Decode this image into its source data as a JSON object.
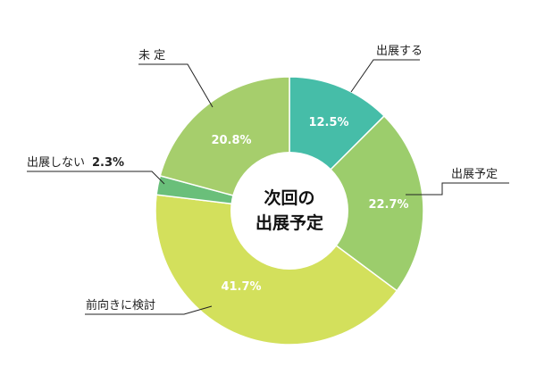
{
  "chart_data": {
    "type": "pie",
    "donut": true,
    "center_label": [
      "次回の",
      "出展予定"
    ],
    "slices": [
      {
        "label": "出展する",
        "value": 12.5,
        "value_text": "12.5%",
        "color": "#46bda8"
      },
      {
        "label": "出展予定",
        "value": 22.7,
        "value_text": "22.7%",
        "color": "#9ccd6c"
      },
      {
        "label": "前向きに検討",
        "value": 41.7,
        "value_text": "41.7%",
        "color": "#d3e05c"
      },
      {
        "label": "出展しない",
        "value": 2.3,
        "value_text": "2.3%",
        "color": "#6abf7a"
      },
      {
        "label": "未 定",
        "value": 20.8,
        "value_text": "20.8%",
        "color": "#a6ce6c"
      }
    ]
  }
}
